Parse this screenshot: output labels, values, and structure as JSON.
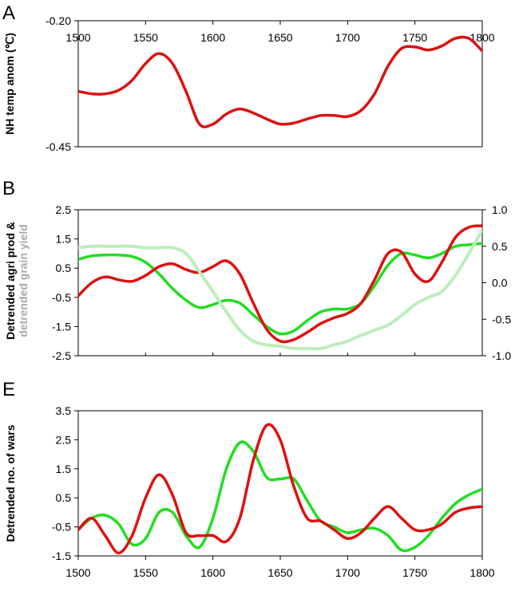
{
  "chart_data": [
    {
      "panel_label": "A",
      "type": "line",
      "ylabel": "NH temp anom (℃)",
      "xlim": [
        1500,
        1800
      ],
      "ylim": [
        -0.45,
        -0.2
      ],
      "x_ticks": [
        "1500",
        "1550",
        "1600",
        "1650",
        "1700",
        "1750",
        "1800"
      ],
      "y_ticks": [
        "-0.20",
        "-0.45"
      ],
      "x_axis_position": "top",
      "series": [
        {
          "color": "#dd1111",
          "x": [
            1500,
            1510,
            1520,
            1530,
            1540,
            1550,
            1560,
            1570,
            1580,
            1590,
            1600,
            1610,
            1620,
            1630,
            1640,
            1650,
            1660,
            1670,
            1680,
            1690,
            1700,
            1710,
            1720,
            1730,
            1740,
            1750,
            1760,
            1770,
            1780,
            1790,
            1800
          ],
          "y": [
            -0.34,
            -0.345,
            -0.345,
            -0.338,
            -0.318,
            -0.285,
            -0.265,
            -0.285,
            -0.34,
            -0.405,
            -0.405,
            -0.385,
            -0.375,
            -0.383,
            -0.395,
            -0.405,
            -0.403,
            -0.395,
            -0.388,
            -0.388,
            -0.39,
            -0.378,
            -0.345,
            -0.29,
            -0.255,
            -0.252,
            -0.258,
            -0.25,
            -0.235,
            -0.235,
            -0.26
          ]
        }
      ]
    },
    {
      "panel_label": "B",
      "type": "line",
      "ylabel_parts": [
        "Detrended agri prod &",
        "detrended grain yield"
      ],
      "xlim": [
        1500,
        1800
      ],
      "ylim": [
        -2.5,
        2.5
      ],
      "y2lim": [
        -1.0,
        1.0
      ],
      "y_ticks": [
        "2.5",
        "1.5",
        "0.5",
        "-0.5",
        "-1.5",
        "-2.5"
      ],
      "y2_ticks": [
        "1.0",
        "0.5",
        "0.0",
        "-0.5",
        "-1.0"
      ],
      "series": [
        {
          "axis": "left",
          "color": "#22dd22",
          "x": [
            1500,
            1510,
            1520,
            1530,
            1540,
            1550,
            1560,
            1570,
            1580,
            1590,
            1600,
            1610,
            1620,
            1630,
            1640,
            1650,
            1660,
            1670,
            1680,
            1690,
            1700,
            1710,
            1720,
            1730,
            1740,
            1750,
            1760,
            1770,
            1780,
            1790,
            1800
          ],
          "y": [
            0.8,
            0.92,
            0.95,
            0.95,
            0.9,
            0.7,
            0.3,
            -0.2,
            -0.6,
            -0.85,
            -0.75,
            -0.6,
            -0.7,
            -1.1,
            -1.5,
            -1.75,
            -1.65,
            -1.3,
            -1.0,
            -0.9,
            -0.9,
            -0.7,
            -0.1,
            0.6,
            1.0,
            0.95,
            0.85,
            1.0,
            1.25,
            1.3,
            1.35
          ]
        },
        {
          "axis": "left",
          "color": "#dd1111",
          "x": [
            1500,
            1510,
            1520,
            1530,
            1540,
            1550,
            1560,
            1570,
            1580,
            1590,
            1600,
            1610,
            1620,
            1630,
            1640,
            1650,
            1660,
            1670,
            1680,
            1690,
            1700,
            1710,
            1720,
            1730,
            1740,
            1750,
            1760,
            1770,
            1780,
            1790,
            1800
          ],
          "y": [
            -0.45,
            0.0,
            0.2,
            0.1,
            0.05,
            0.25,
            0.55,
            0.65,
            0.45,
            0.35,
            0.55,
            0.75,
            0.3,
            -0.7,
            -1.6,
            -2.0,
            -1.95,
            -1.7,
            -1.4,
            -1.2,
            -1.05,
            -0.7,
            0.1,
            1.0,
            1.05,
            0.3,
            0.05,
            0.7,
            1.55,
            1.9,
            1.95
          ]
        },
        {
          "axis": "right",
          "color": "#bbeebb",
          "x": [
            1500,
            1510,
            1520,
            1530,
            1540,
            1550,
            1560,
            1570,
            1580,
            1590,
            1600,
            1610,
            1620,
            1630,
            1640,
            1650,
            1660,
            1670,
            1680,
            1690,
            1700,
            1710,
            1720,
            1730,
            1740,
            1750,
            1760,
            1770,
            1780,
            1790,
            1800
          ],
          "y": [
            0.48,
            0.5,
            0.5,
            0.5,
            0.5,
            0.48,
            0.48,
            0.48,
            0.4,
            0.15,
            -0.12,
            -0.4,
            -0.65,
            -0.8,
            -0.85,
            -0.87,
            -0.9,
            -0.9,
            -0.9,
            -0.85,
            -0.8,
            -0.72,
            -0.65,
            -0.58,
            -0.45,
            -0.3,
            -0.2,
            -0.12,
            0.1,
            0.4,
            0.72
          ]
        }
      ]
    },
    {
      "panel_label": "E",
      "type": "line",
      "ylabel": "Detrended no. of wars",
      "xlim": [
        1500,
        1800
      ],
      "ylim": [
        -1.5,
        3.5
      ],
      "y_ticks": [
        "3.5",
        "2.5",
        "1.5",
        "0.5",
        "-0.5",
        "-1.5"
      ],
      "x_ticks": [
        "1500",
        "1550",
        "1600",
        "1650",
        "1700",
        "1750",
        "1800"
      ],
      "series": [
        {
          "color": "#22dd22",
          "x": [
            1500,
            1510,
            1520,
            1530,
            1540,
            1550,
            1560,
            1570,
            1580,
            1590,
            1600,
            1610,
            1620,
            1630,
            1640,
            1650,
            1660,
            1670,
            1680,
            1690,
            1700,
            1710,
            1720,
            1730,
            1740,
            1750,
            1760,
            1770,
            1780,
            1790,
            1800
          ],
          "y": [
            -0.6,
            -0.2,
            -0.1,
            -0.4,
            -1.1,
            -0.9,
            0.0,
            0.0,
            -0.8,
            -1.2,
            -0.2,
            1.5,
            2.4,
            2.1,
            1.2,
            1.15,
            1.15,
            0.4,
            -0.3,
            -0.5,
            -0.7,
            -0.6,
            -0.55,
            -0.8,
            -1.3,
            -1.2,
            -0.8,
            -0.2,
            0.3,
            0.6,
            0.8
          ]
        },
        {
          "color": "#dd1111",
          "x": [
            1500,
            1510,
            1520,
            1530,
            1540,
            1550,
            1560,
            1570,
            1580,
            1590,
            1600,
            1610,
            1620,
            1630,
            1640,
            1650,
            1660,
            1670,
            1680,
            1690,
            1700,
            1710,
            1720,
            1730,
            1740,
            1750,
            1760,
            1770,
            1780,
            1790,
            1800
          ],
          "y": [
            -0.6,
            -0.2,
            -0.8,
            -1.4,
            -0.8,
            0.5,
            1.3,
            0.6,
            -0.7,
            -0.8,
            -0.8,
            -1.0,
            -0.2,
            1.8,
            3.0,
            2.5,
            0.9,
            -0.2,
            -0.3,
            -0.6,
            -0.9,
            -0.7,
            -0.2,
            0.2,
            -0.2,
            -0.6,
            -0.6,
            -0.4,
            0.0,
            0.15,
            0.2
          ]
        }
      ]
    }
  ]
}
